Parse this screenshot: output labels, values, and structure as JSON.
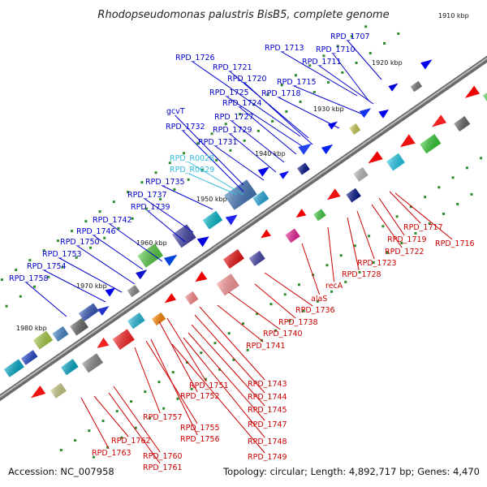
{
  "title": "Rhodopseudomonas palustris BisB5, complete genome",
  "footer": {
    "accession": "Accession: NC_007958",
    "summary": "Topology: circular; Length: 4,892,717 bp; Genes: 4,470"
  },
  "colors": {
    "plus_label": "#0000cc",
    "minus_label": "#cc0000",
    "rna_label": "#33bbdd",
    "backbone": "#888888"
  },
  "kbp_ticks": [
    "1910 kbp",
    "1920 kbp",
    "1930 kbp",
    "1940 kbp",
    "1950 kbp",
    "1960 kbp",
    "1970 kbp",
    "1980 kbp"
  ],
  "plus_labels": [
    "RPD_1707",
    "RPD_1713",
    "RPD_1710",
    "RPD_1726",
    "RPD_1711",
    "RPD_1721",
    "RPD_1720",
    "RPD_1715",
    "RPD_1725",
    "RPD_1718",
    "RPD_1724",
    "gcvT",
    "RPD_1727",
    "RPD_1732",
    "RPD_1729",
    "RPD_1731",
    "RPD_R0028",
    "RPD_R0029",
    "RPD_1735",
    "RPD_1737",
    "RPD_1739",
    "RPD_1742",
    "RPD_1746",
    "RPD_1750",
    "RPD_1753",
    "RPD_1754",
    "RPD_1758"
  ],
  "minus_labels": [
    "RPD_1717",
    "RPD_1719",
    "RPD_1716",
    "RPD_1722",
    "RPD_1723",
    "RPD_1728",
    "recA",
    "alaS",
    "RPD_1736",
    "RPD_1738",
    "RPD_1740",
    "RPD_1741",
    "RPD_1743",
    "RPD_1751",
    "RPD_1744",
    "RPD_1752",
    "RPD_1745",
    "RPD_1757",
    "RPD_1747",
    "RPD_1755",
    "RPD_1756",
    "RPD_1748",
    "RPD_1762",
    "RPD_1749",
    "RPD_1763",
    "RPD_1760",
    "RPD_1761"
  ]
}
